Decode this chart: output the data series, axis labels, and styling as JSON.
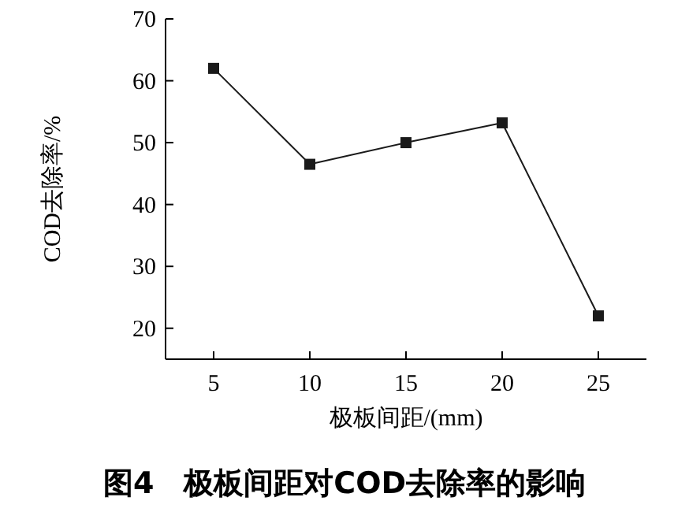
{
  "chart_data": {
    "type": "line",
    "xlabel": "极板间距/(mm)",
    "ylabel": "COD去除率/%",
    "annotations": [
      "图4　极板间距对COD去除率的影响"
    ],
    "x": [
      5,
      10,
      15,
      20,
      25
    ],
    "series": [
      {
        "color": "#1a1a1a",
        "values": [
          62,
          46.5,
          50,
          53.2,
          22
        ]
      }
    ],
    "xlim": [
      2.5,
      27.5
    ],
    "xticks": [
      5,
      10,
      15,
      20,
      25
    ],
    "ylim": [
      15,
      70
    ],
    "yticks": [
      20,
      30,
      40,
      50,
      60,
      70
    ],
    "marker": "square",
    "line_style": "solid",
    "grid": false
  }
}
